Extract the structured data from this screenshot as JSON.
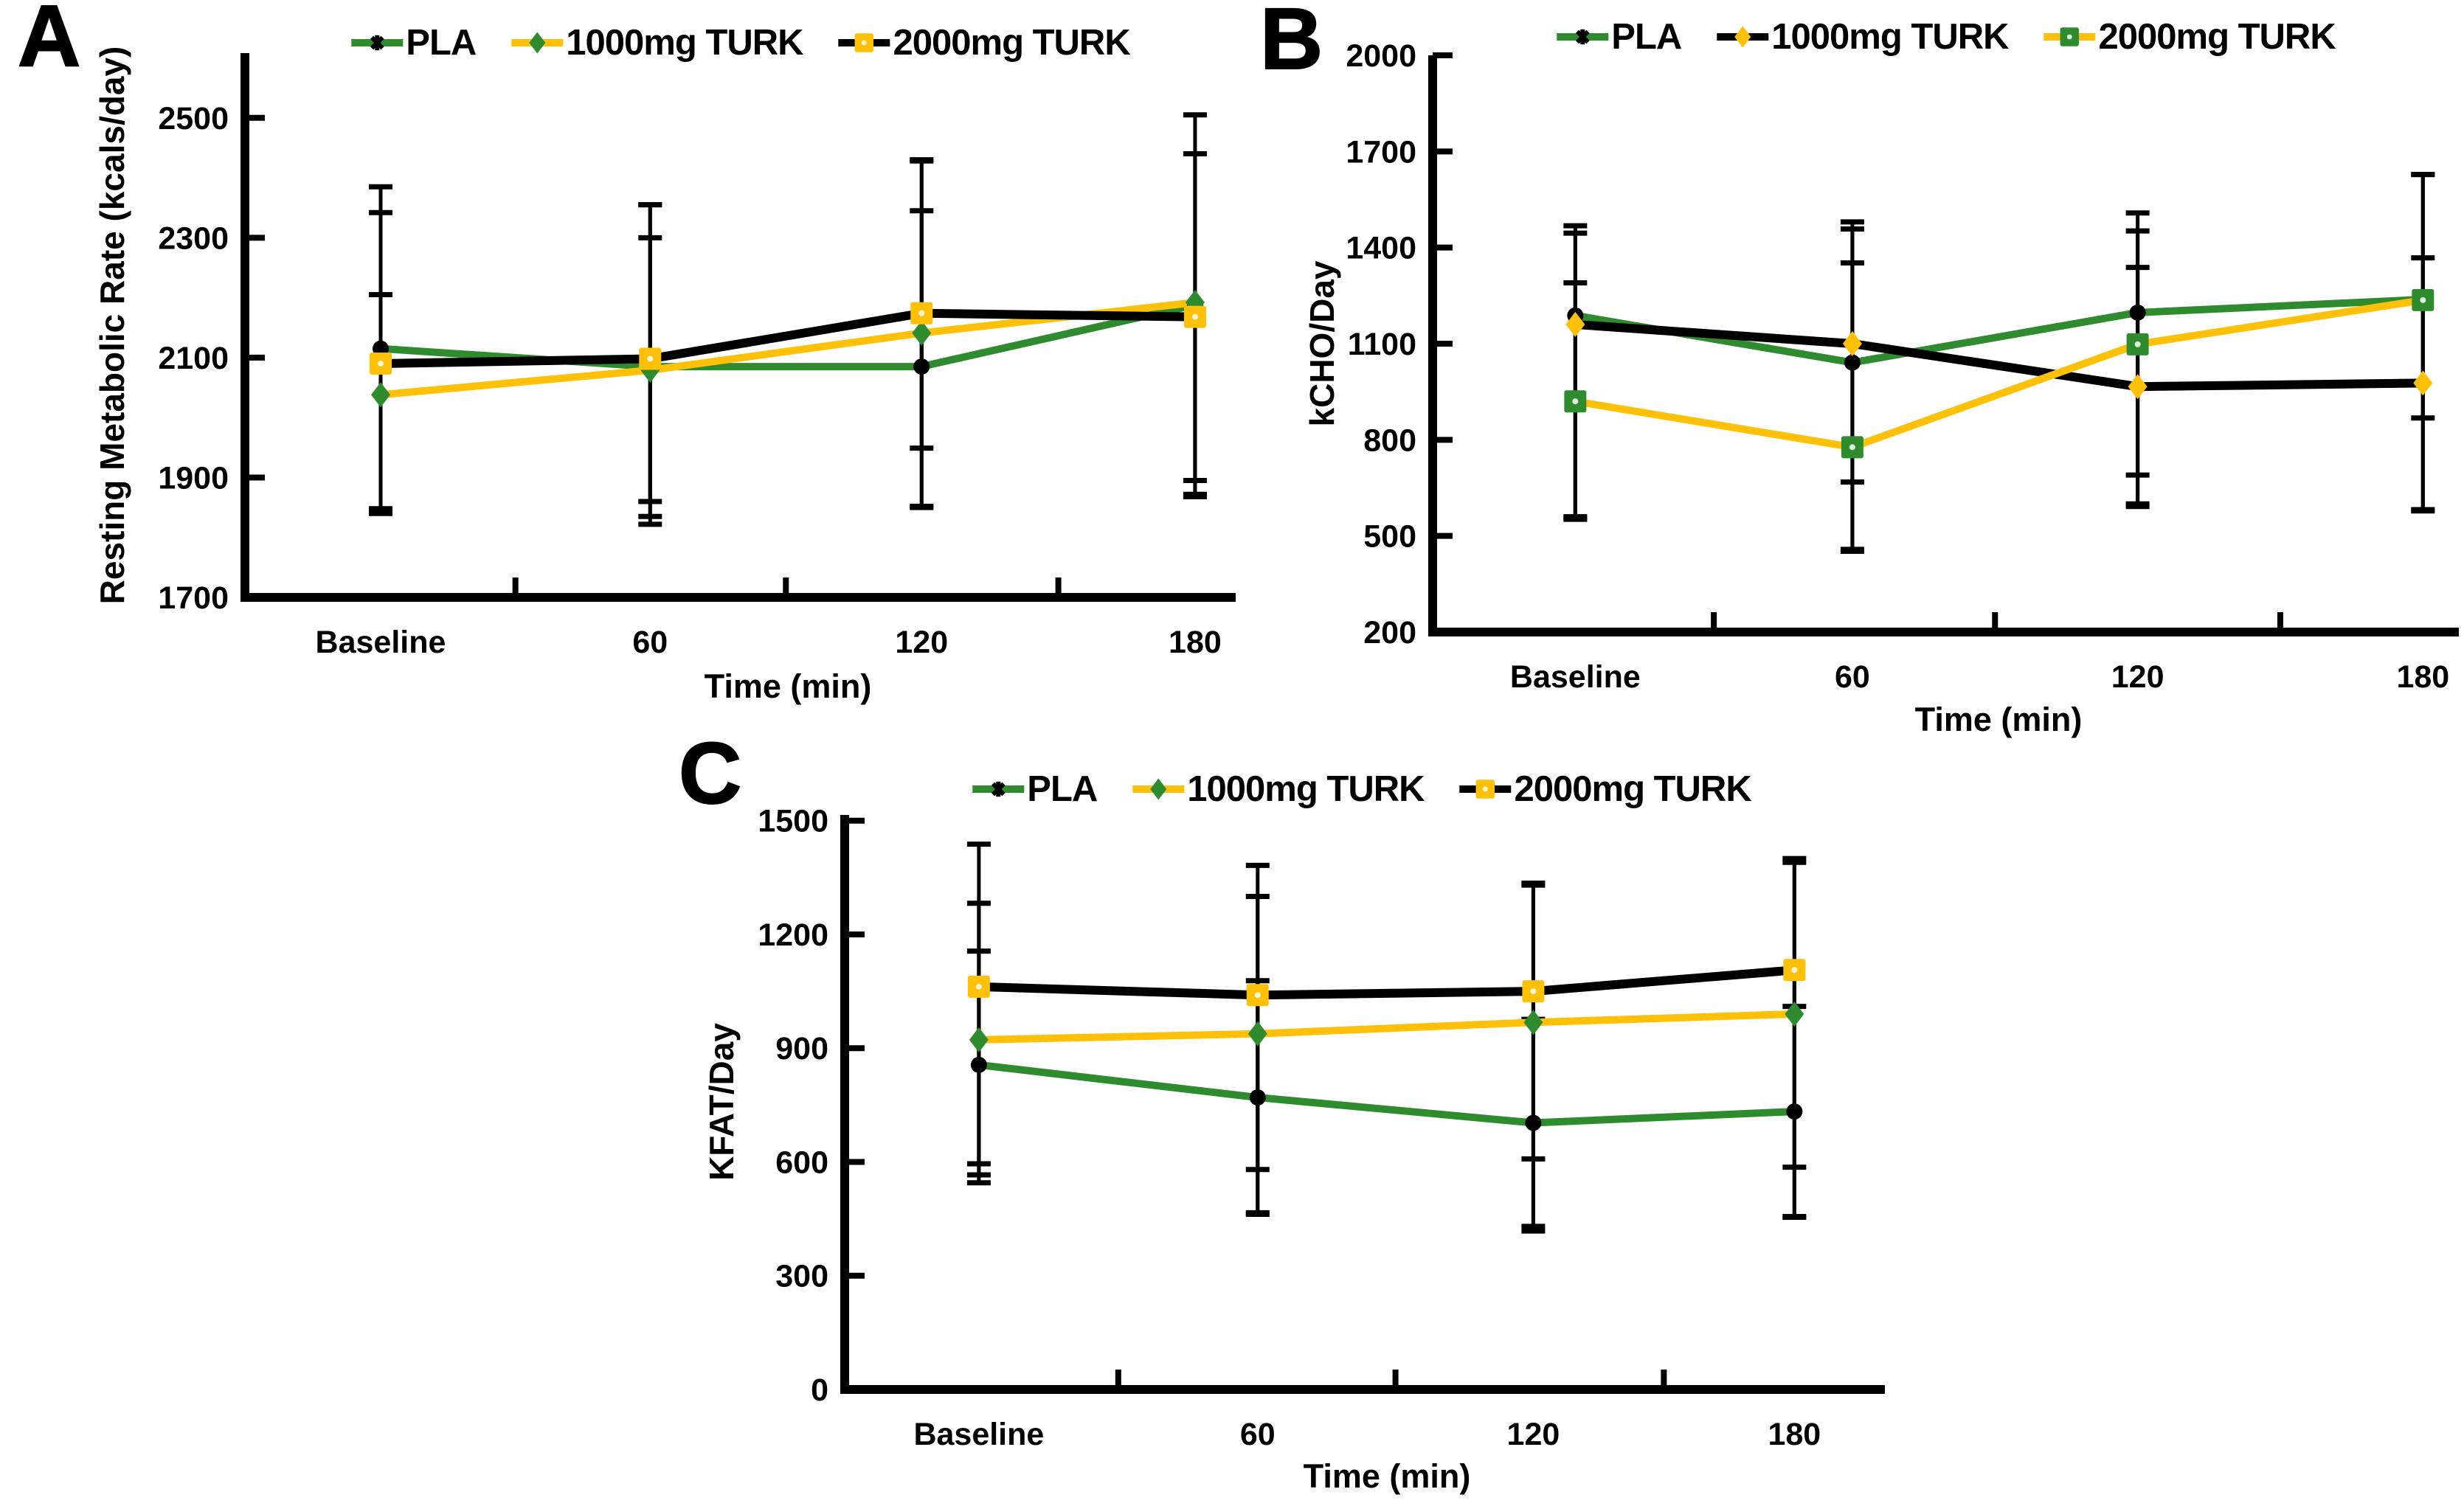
{
  "figure": {
    "background": "#ffffff",
    "accent_green": "#2E8B2E",
    "accent_yellow": "#FFC107",
    "accent_black": "#000000"
  },
  "chart_data": [
    {
      "panel": "A",
      "type": "line",
      "letter": "A",
      "ylabel": "Resting Metabolic Rate (kcals/day)",
      "xlabel": "Time (min)",
      "categories": [
        "Baseline",
        "60",
        "120",
        "180"
      ],
      "yticks": [
        1700,
        1900,
        2100,
        2300,
        2500
      ],
      "ylim": [
        1700,
        2608
      ],
      "grid": false,
      "legend_position": "top",
      "series": [
        {
          "name": "PLA",
          "line_color": "#2E8B2E",
          "line_width": 10,
          "marker": "dot",
          "legend_marker": "burst",
          "marker_color": "#000000",
          "values": [
            2115,
            2085,
            2085,
            2188
          ],
          "err_low": [
            1845,
            1835,
            1850,
            1895
          ],
          "err_high": [
            2385,
            2355,
            2345,
            2440
          ]
        },
        {
          "name": "1000mg TURK",
          "line_color": "#FFC107",
          "line_width": 10,
          "marker": "diamond",
          "marker_color": "#2E8B2E",
          "values": [
            2038,
            2079,
            2141,
            2192
          ],
          "err_low": [
            1848,
            1860,
            1949,
            1868
          ],
          "err_high": [
            2205,
            2300,
            2428,
            2505
          ]
        },
        {
          "name": "2000mg TURK",
          "line_color": "#000000",
          "line_width": 12,
          "marker": "square",
          "marker_color": "#FFC107",
          "values": [
            2090,
            2098,
            2174,
            2168
          ],
          "err_low": [
            1840,
            1822,
            1852,
            1872
          ],
          "err_high": [
            2342,
            2355,
            2430,
            2440
          ]
        }
      ]
    },
    {
      "panel": "B",
      "type": "line",
      "letter": "B",
      "ylabel": "kCHO/Day",
      "xlabel": "Time (min)",
      "categories": [
        "Baseline",
        "60",
        "120",
        "180"
      ],
      "yticks": [
        200,
        500,
        800,
        1100,
        1400,
        1700,
        2000
      ],
      "ylim": [
        200,
        2000
      ],
      "grid": false,
      "legend_position": "top",
      "series": [
        {
          "name": "PLA",
          "line_color": "#2E8B2E",
          "line_width": 10,
          "marker": "dot",
          "legend_marker": "burst",
          "marker_color": "#000000",
          "values": [
            1188,
            1041,
            1197,
            1238
          ],
          "err_low": [
            560,
            668,
            690,
            868
          ],
          "err_high": [
            1468,
            1480,
            1508,
            1628
          ]
        },
        {
          "name": "1000mg TURK",
          "line_color": "#000000",
          "line_width": 12,
          "marker": "diamond",
          "marker_color": "#FFC107",
          "values": [
            1160,
            1100,
            966,
            977
          ],
          "err_low": [
            552,
            452,
            592,
            578
          ],
          "err_high": [
            1445,
            1458,
            1338,
            1368
          ]
        },
        {
          "name": "2000mg TURK",
          "line_color": "#FFC107",
          "line_width": 10,
          "marker": "square",
          "marker_color": "#2E8B2E",
          "values": [
            920,
            777,
            1098,
            1236
          ],
          "err_low": [
            556,
            458,
            600,
            582
          ],
          "err_high": [
            1290,
            1352,
            1452,
            1628
          ]
        }
      ]
    },
    {
      "panel": "C",
      "type": "line",
      "letter": "C",
      "ylabel": "KFAT/Day",
      "xlabel": "Time (min)",
      "categories": [
        "Baseline",
        "60",
        "120",
        "180"
      ],
      "yticks": [
        0,
        300,
        600,
        900,
        1200,
        1500
      ],
      "ylim": [
        0,
        1515
      ],
      "grid": false,
      "legend_position": "top",
      "series": [
        {
          "name": "PLA",
          "line_color": "#2E8B2E",
          "line_width": 10,
          "marker": "dot",
          "legend_marker": "burst",
          "marker_color": "#000000",
          "values": [
            856,
            770,
            703,
            733
          ],
          "err_low": [
            566,
            462,
            430,
            456
          ],
          "err_high": [
            1156,
            1078,
            976,
            1010
          ]
        },
        {
          "name": "1000mg TURK",
          "line_color": "#FFC107",
          "line_width": 10,
          "marker": "diamond",
          "marker_color": "#2E8B2E",
          "values": [
            922,
            938,
            968,
            990
          ],
          "err_low": [
            595,
            580,
            608,
            586
          ],
          "err_high": [
            1282,
            1300,
            1330,
            1390
          ]
        },
        {
          "name": "2000mg TURK",
          "line_color": "#000000",
          "line_width": 12,
          "marker": "square",
          "marker_color": "#FFC107",
          "values": [
            1062,
            1040,
            1050,
            1106
          ],
          "err_low": [
            545,
            466,
            418,
            454
          ],
          "err_high": [
            1438,
            1382,
            1335,
            1400
          ]
        }
      ]
    }
  ]
}
